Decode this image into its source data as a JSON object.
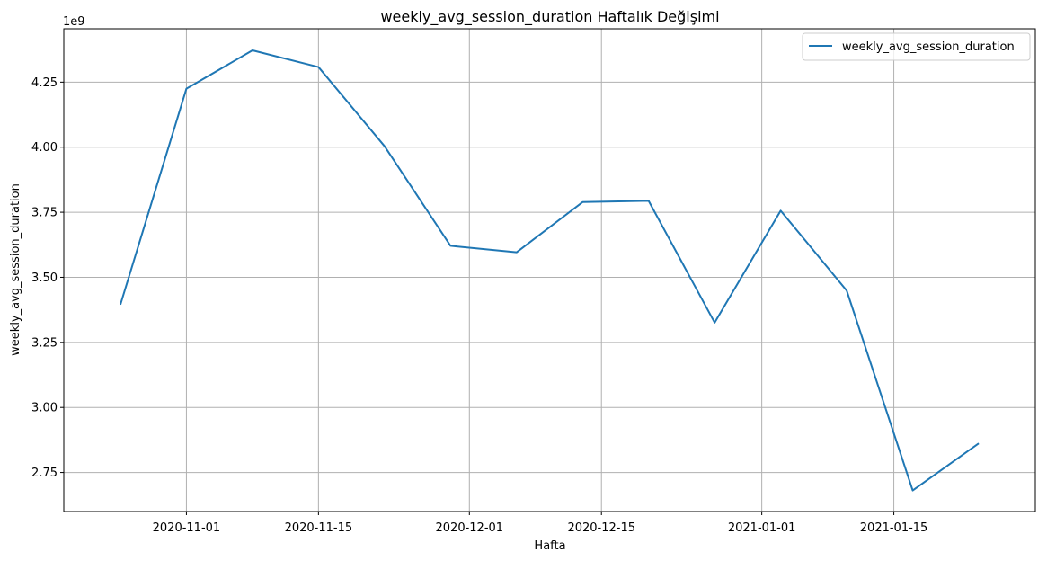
{
  "chart_data": {
    "type": "line",
    "title": "weekly_avg_session_duration Haftalık Değişimi",
    "xlabel": "Hafta",
    "ylabel": "weekly_avg_session_duration",
    "y_offset_label": "1e9",
    "x": [
      "2020-10-25",
      "2020-11-01",
      "2020-11-08",
      "2020-11-15",
      "2020-11-22",
      "2020-11-29",
      "2020-12-06",
      "2020-12-13",
      "2020-12-20",
      "2020-12-27",
      "2021-01-03",
      "2021-01-10",
      "2021-01-17",
      "2021-01-24"
    ],
    "series": [
      {
        "name": "weekly_avg_session_duration",
        "color": "#1f77b4",
        "values": [
          3395000000.0,
          4225000000.0,
          4372000000.0,
          4308000000.0,
          4004000000.0,
          3621000000.0,
          3596000000.0,
          3789000000.0,
          3794000000.0,
          3326000000.0,
          3756000000.0,
          3449000000.0,
          2681000000.0,
          2862000000.0
        ]
      }
    ],
    "x_ticks": [
      "2020-11-01",
      "2020-11-15",
      "2020-12-01",
      "2020-12-15",
      "2021-01-01",
      "2021-01-15"
    ],
    "y_ticks": [
      2.75,
      3.0,
      3.25,
      3.5,
      3.75,
      4.0,
      4.25
    ],
    "y_tick_labels": [
      "2.75",
      "3.00",
      "3.25",
      "3.50",
      "3.75",
      "4.00",
      "4.25"
    ],
    "xlim": [
      "2020-10-19",
      "2021-01-30"
    ],
    "ylim": [
      2600000000.0,
      4455000000.0
    ],
    "grid": true,
    "legend_position": "upper right"
  }
}
